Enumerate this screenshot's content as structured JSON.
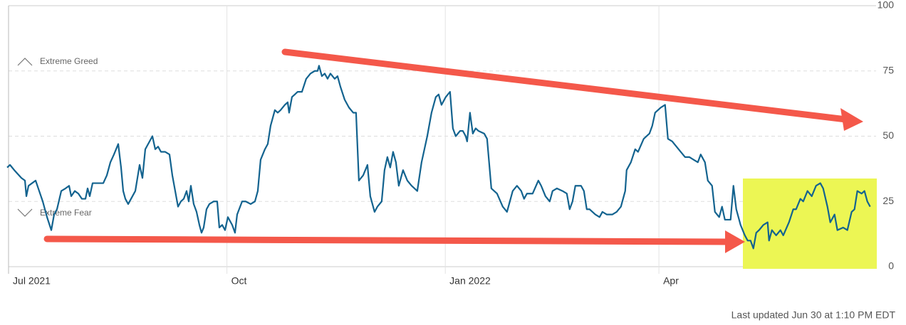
{
  "chart_data": {
    "type": "line",
    "annotations": [
      "Extreme Greed",
      "Extreme Fear"
    ],
    "footer": "Last updated Jun 30 at 1:10 PM EDT",
    "color": "#13638f",
    "grid": true,
    "xlim": [
      -1,
      364
    ],
    "xticks": [
      {
        "value": 0,
        "label": "Jul 2021"
      },
      {
        "value": 92,
        "label": "Oct"
      },
      {
        "value": 184,
        "label": "Jan 2022"
      },
      {
        "value": 274,
        "label": "Apr"
      }
    ],
    "ylim": [
      0,
      100
    ],
    "yticks": [
      0,
      25,
      50,
      75,
      100
    ],
    "x": [
      -0.6,
      0.6,
      2.4,
      5.4,
      6.9,
      7.5,
      8.4,
      9.9,
      11.4,
      12.9,
      14.4,
      16.2,
      18,
      19.2,
      20.4,
      22.2,
      24,
      25.5,
      26.4,
      27.9,
      29.4,
      30.9,
      32.4,
      33.3,
      34.2,
      35.4,
      38.4,
      39.9,
      41.4,
      42.9,
      44.4,
      46.2,
      47.4,
      48.3,
      49.2,
      50.4,
      51.6,
      53.4,
      55.2,
      56.4,
      57.6,
      59.4,
      60.6,
      61.8,
      63,
      64.2,
      66,
      67.8,
      69,
      71.4,
      72.6,
      73.8,
      75,
      75.9,
      76.8,
      78,
      79.2,
      80.4,
      81.3,
      82.2,
      83.4,
      84.6,
      86.4,
      87.9,
      88.8,
      90,
      91.2,
      92.4,
      94.2,
      95.4,
      96.3,
      98.4,
      99.9,
      102,
      103.8,
      105,
      106.2,
      108,
      109.2,
      110.4,
      112.2,
      113.4,
      114.6,
      116.4,
      117.6,
      118.2,
      119.4,
      120.6,
      121.8,
      123.6,
      125.4,
      127.2,
      129,
      130.2,
      130.8,
      132,
      133.2,
      134.4,
      135.6,
      137.4,
      138.6,
      139.8,
      141.6,
      143.4,
      145.2,
      146.4,
      147.6,
      149.4,
      151.2,
      152.4,
      154.2,
      155.4,
      157.2,
      158.4,
      159.6,
      160.8,
      162,
      163.2,
      164.4,
      166.2,
      168,
      169.8,
      172.2,
      174,
      176.4,
      178.2,
      180,
      181.2,
      182.4,
      184.2,
      186,
      187.2,
      188.4,
      190.2,
      191.4,
      192.6,
      193.2,
      194.4,
      195.6,
      196.8,
      198,
      200.4,
      201.6,
      203.4,
      205.8,
      208.2,
      210,
      212.4,
      214.2,
      216,
      217.2,
      218.4,
      220.8,
      223.2,
      224.4,
      226.2,
      228,
      229.2,
      231,
      233.4,
      235.2,
      236.4,
      237.6,
      238.8,
      241.2,
      242.4,
      243.6,
      244.8,
      247.2,
      249,
      250.2,
      252,
      254.4,
      256.2,
      258,
      259.8,
      260.4,
      262.2,
      264,
      265.2,
      267.6,
      270,
      271.2,
      272.4,
      273.6,
      274.8,
      276.6,
      277.8,
      279.6,
      281.4,
      283.2,
      285,
      286.8,
      288.6,
      290.4,
      291.6,
      293.4,
      294.6,
      296.4,
      297.6,
      299.4,
      300.6,
      301.8,
      304.2,
      305.4,
      306.6,
      308.4,
      310.2,
      311.4,
      312.6,
      313.8,
      315,
      316.2,
      318,
      319.8,
      320.4,
      321.6,
      323.4,
      325.2,
      326.4,
      328.8,
      330.6,
      331.8,
      333.6,
      334.8,
      336.6,
      338.4,
      340.2,
      342,
      343.2,
      345,
      346.2,
      348,
      349.2,
      351.6,
      353.4,
      355.2,
      356.4,
      357.6,
      359.4,
      360.6,
      361.8,
      363
    ],
    "values": [
      38,
      39,
      37,
      34,
      33,
      27,
      31,
      32,
      33,
      29,
      25,
      19,
      14,
      20,
      22,
      29,
      30,
      31,
      27,
      29,
      28,
      26,
      26,
      30,
      27,
      32,
      32,
      32,
      35,
      40,
      43,
      47,
      38,
      29,
      26,
      24,
      26,
      29,
      39,
      34,
      45,
      48,
      50,
      45,
      46,
      44,
      44,
      43,
      35,
      23,
      25,
      26,
      29,
      25,
      31,
      24,
      21,
      16,
      13,
      15,
      22,
      24,
      25,
      25,
      15,
      16,
      14,
      19,
      16,
      13,
      20,
      25,
      25,
      24,
      25,
      29,
      41,
      45,
      47,
      54,
      60,
      59,
      60,
      62,
      63,
      59,
      65,
      66,
      67,
      67,
      72,
      74,
      75,
      75,
      77,
      73,
      74,
      72,
      74,
      72,
      73,
      69,
      64,
      61,
      59,
      59,
      33,
      35,
      39,
      27,
      21,
      23,
      25,
      37,
      42,
      38,
      44,
      40,
      31,
      37,
      33,
      31,
      29,
      40,
      50,
      59,
      65,
      66,
      62,
      65,
      67,
      53,
      50,
      52,
      52,
      50,
      48,
      59,
      51,
      53,
      52,
      51,
      49,
      30,
      28,
      23,
      21,
      29,
      31,
      29,
      26,
      28,
      28,
      33,
      31,
      27,
      25,
      29,
      30,
      29,
      28,
      22,
      25,
      31,
      31,
      29,
      22,
      22,
      20,
      19,
      21,
      20,
      20,
      21,
      23,
      29,
      37,
      40,
      45,
      44,
      49,
      51,
      54,
      59,
      60,
      61,
      62,
      49,
      48,
      46,
      44,
      42,
      42,
      41,
      40,
      43,
      40,
      33,
      31,
      21,
      19,
      23,
      18,
      18,
      31,
      22,
      16,
      12,
      10,
      10,
      7,
      13,
      14,
      16,
      17,
      10,
      14,
      12,
      14,
      12,
      17,
      22,
      22,
      26,
      25,
      29,
      27,
      31,
      32,
      30,
      23,
      17,
      20,
      14,
      15,
      14,
      21,
      22,
      29,
      28,
      29,
      25,
      23
    ]
  }
}
